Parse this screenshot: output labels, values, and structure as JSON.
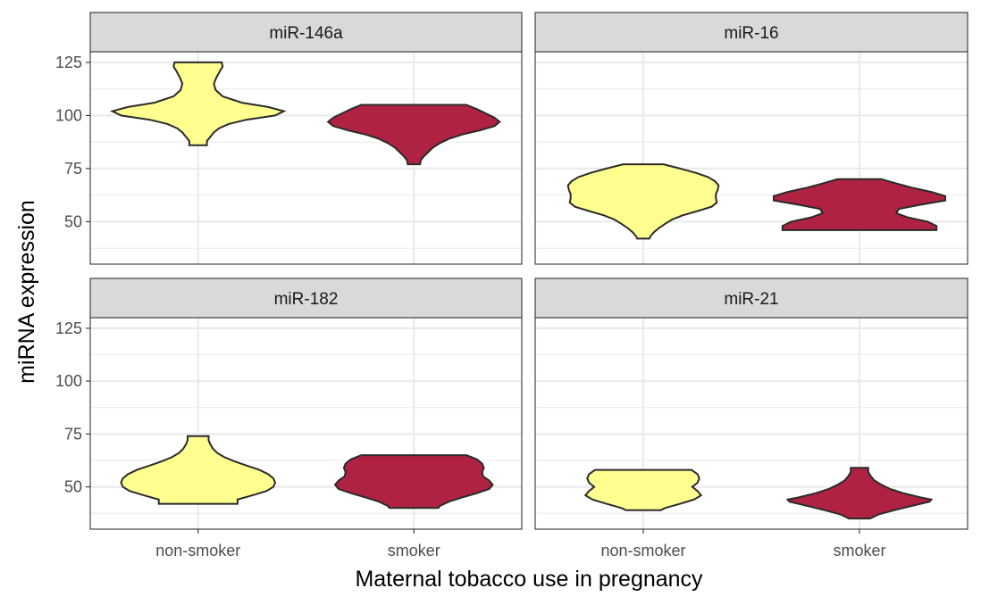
{
  "chart_data": {
    "type": "violin",
    "title": "",
    "xlabel": "Maternal tobacco use in pregnancy",
    "ylabel": "miRNA expression",
    "categories": [
      "non-smoker",
      "smoker"
    ],
    "ylim": [
      30,
      130
    ],
    "y_ticks": [
      50,
      75,
      100,
      125
    ],
    "colors": {
      "non-smoker": "#FFFF8F",
      "smoker": "#AF2242"
    },
    "grid": true,
    "legend": "none",
    "facet_layout": "2x2",
    "panels": [
      {
        "label": "miR-146a",
        "violins": [
          {
            "group": "non-smoker",
            "min": 86,
            "max": 125,
            "profile": [
              [
                125,
                0.27
              ],
              [
                123,
                0.28
              ],
              [
                121,
                0.25
              ],
              [
                118,
                0.21
              ],
              [
                115,
                0.18
              ],
              [
                112,
                0.2
              ],
              [
                109,
                0.28
              ],
              [
                106,
                0.5
              ],
              [
                104,
                0.8
              ],
              [
                102,
                0.98
              ],
              [
                100,
                0.88
              ],
              [
                98,
                0.55
              ],
              [
                96,
                0.35
              ],
              [
                94,
                0.24
              ],
              [
                92,
                0.18
              ],
              [
                90,
                0.14
              ],
              [
                88,
                0.1
              ],
              [
                86,
                0.1
              ]
            ]
          },
          {
            "group": "smoker",
            "min": 77,
            "max": 105,
            "profile": [
              [
                105,
                0.6
              ],
              [
                103,
                0.72
              ],
              [
                101,
                0.82
              ],
              [
                99,
                0.92
              ],
              [
                97,
                0.98
              ],
              [
                95,
                0.92
              ],
              [
                93,
                0.75
              ],
              [
                91,
                0.55
              ],
              [
                89,
                0.4
              ],
              [
                87,
                0.3
              ],
              [
                85,
                0.22
              ],
              [
                83,
                0.17
              ],
              [
                81,
                0.12
              ],
              [
                79,
                0.08
              ],
              [
                77,
                0.07
              ]
            ]
          }
        ]
      },
      {
        "label": "miR-16",
        "violins": [
          {
            "group": "non-smoker",
            "min": 42,
            "max": 77,
            "profile": [
              [
                77,
                0.23
              ],
              [
                75,
                0.42
              ],
              [
                73,
                0.6
              ],
              [
                71,
                0.74
              ],
              [
                69,
                0.82
              ],
              [
                67,
                0.86
              ],
              [
                65,
                0.85
              ],
              [
                63,
                0.83
              ],
              [
                61,
                0.83
              ],
              [
                59,
                0.84
              ],
              [
                57,
                0.78
              ],
              [
                55,
                0.62
              ],
              [
                53,
                0.45
              ],
              [
                51,
                0.33
              ],
              [
                49,
                0.25
              ],
              [
                47,
                0.18
              ],
              [
                45,
                0.12
              ],
              [
                43,
                0.08
              ],
              [
                42,
                0.07
              ]
            ]
          },
          {
            "group": "smoker",
            "min": 46,
            "max": 70,
            "profile": [
              [
                70,
                0.25
              ],
              [
                68,
                0.42
              ],
              [
                66,
                0.6
              ],
              [
                64,
                0.82
              ],
              [
                62,
                0.98
              ],
              [
                60,
                0.98
              ],
              [
                58,
                0.7
              ],
              [
                56,
                0.45
              ],
              [
                54,
                0.42
              ],
              [
                52,
                0.55
              ],
              [
                50,
                0.78
              ],
              [
                48,
                0.88
              ],
              [
                46,
                0.88
              ]
            ]
          }
        ]
      },
      {
        "label": "miR-182",
        "violins": [
          {
            "group": "non-smoker",
            "min": 42,
            "max": 74,
            "profile": [
              [
                74,
                0.12
              ],
              [
                72,
                0.12
              ],
              [
                70,
                0.14
              ],
              [
                68,
                0.17
              ],
              [
                66,
                0.22
              ],
              [
                64,
                0.3
              ],
              [
                62,
                0.42
              ],
              [
                60,
                0.56
              ],
              [
                58,
                0.7
              ],
              [
                56,
                0.8
              ],
              [
                54,
                0.86
              ],
              [
                52,
                0.88
              ],
              [
                50,
                0.86
              ],
              [
                48,
                0.78
              ],
              [
                46,
                0.62
              ],
              [
                44,
                0.45
              ],
              [
                42,
                0.45
              ]
            ]
          },
          {
            "group": "smoker",
            "min": 40,
            "max": 65,
            "profile": [
              [
                65,
                0.6
              ],
              [
                63,
                0.72
              ],
              [
                61,
                0.78
              ],
              [
                59,
                0.8
              ],
              [
                57,
                0.78
              ],
              [
                55,
                0.79
              ],
              [
                53,
                0.86
              ],
              [
                51,
                0.9
              ],
              [
                49,
                0.86
              ],
              [
                47,
                0.72
              ],
              [
                45,
                0.55
              ],
              [
                43,
                0.4
              ],
              [
                41,
                0.3
              ],
              [
                40,
                0.28
              ]
            ]
          }
        ]
      },
      {
        "label": "miR-21",
        "violins": [
          {
            "group": "non-smoker",
            "min": 39,
            "max": 58,
            "profile": [
              [
                58,
                0.55
              ],
              [
                56,
                0.62
              ],
              [
                54,
                0.64
              ],
              [
                52,
                0.62
              ],
              [
                50,
                0.56
              ],
              [
                48,
                0.62
              ],
              [
                46,
                0.66
              ],
              [
                44,
                0.58
              ],
              [
                42,
                0.42
              ],
              [
                40,
                0.25
              ],
              [
                39,
                0.2
              ]
            ]
          },
          {
            "group": "smoker",
            "min": 35,
            "max": 59,
            "profile": [
              [
                59,
                0.1
              ],
              [
                57,
                0.1
              ],
              [
                55,
                0.13
              ],
              [
                53,
                0.17
              ],
              [
                51,
                0.25
              ],
              [
                49,
                0.35
              ],
              [
                47,
                0.5
              ],
              [
                45,
                0.7
              ],
              [
                44,
                0.82
              ],
              [
                43,
                0.8
              ],
              [
                41,
                0.6
              ],
              [
                39,
                0.4
              ],
              [
                37,
                0.22
              ],
              [
                35,
                0.12
              ]
            ]
          }
        ]
      }
    ]
  }
}
